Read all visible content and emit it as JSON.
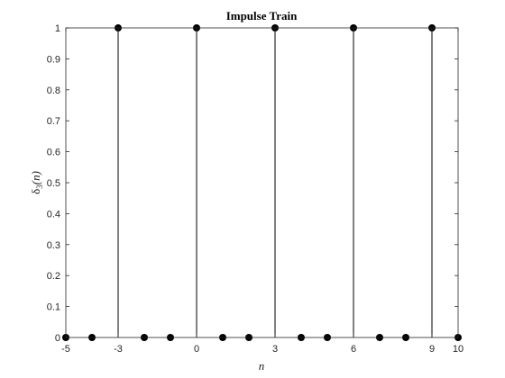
{
  "chart_data": {
    "type": "stem",
    "title": "Impulse Train",
    "xlabel": "n",
    "ylabel": "δ3(n)",
    "ylabel_main": "δ",
    "ylabel_sub": "3",
    "ylabel_rest": "(n)",
    "xlim": [
      -5,
      10
    ],
    "ylim": [
      0,
      1
    ],
    "xticks": [
      "-5",
      "-3",
      "0",
      "3",
      "6",
      "9",
      "10"
    ],
    "xtick_values": [
      -5,
      -3,
      0,
      3,
      6,
      9,
      10
    ],
    "yticks": [
      "0",
      "0.1",
      "0.2",
      "0.3",
      "0.4",
      "0.5",
      "0.6",
      "0.7",
      "0.8",
      "0.9",
      "1"
    ],
    "ytick_values": [
      0,
      0.1,
      0.2,
      0.3,
      0.4,
      0.5,
      0.6,
      0.7,
      0.8,
      0.9,
      1
    ],
    "x": [
      -5,
      -4,
      -3,
      -2,
      -1,
      0,
      1,
      2,
      3,
      4,
      5,
      6,
      7,
      8,
      9,
      10
    ],
    "y": [
      0,
      0,
      1,
      0,
      0,
      1,
      0,
      0,
      1,
      0,
      0,
      1,
      0,
      0,
      1,
      0
    ],
    "marker_color": "#000000",
    "stem_color": "#000000",
    "grid": false
  }
}
